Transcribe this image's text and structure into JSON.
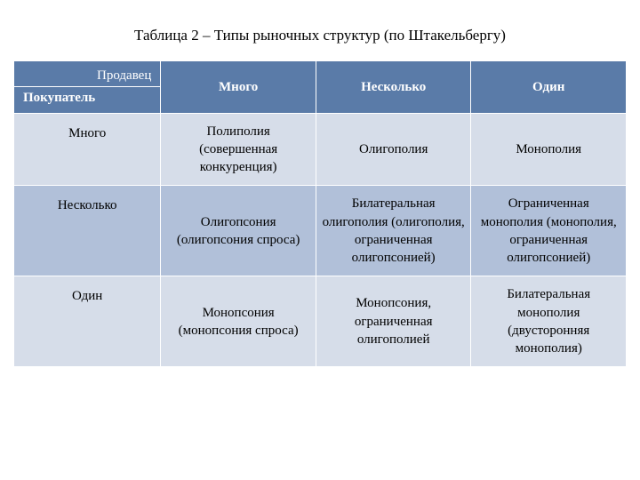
{
  "caption": "Таблица 2 – Типы рыночных структур (по Штакельбергу)",
  "table": {
    "corner": {
      "seller": "Продавец",
      "buyer": "Покупатель"
    },
    "columns": [
      "Много",
      "Несколько",
      "Один"
    ],
    "rows": [
      {
        "label": "Много",
        "cells": [
          "Полиполия (совершенная конкуренция)",
          "Олигополия",
          "Монополия"
        ]
      },
      {
        "label": "Несколько",
        "cells": [
          "Олигопсония (олигопсония спроса)",
          "Билатеральная олигополия (олигополия, ограниченная олигопсонией)",
          "Ограниченная монополия (монополия, ограниченная олигопсонией)"
        ]
      },
      {
        "label": "Один",
        "cells": [
          "Монопсония (монопсония спроса)",
          "Монопсония, ограниченная олигополией",
          "Билатеральная монополия (двусторонняя монополия)"
        ]
      }
    ],
    "style": {
      "header_bg": "#5a7ba8",
      "header_fg": "#ffffff",
      "band_light": "#d6dde9",
      "band_dark": "#b1c0d9",
      "border_color": "#ffffff",
      "font_family": "Georgia",
      "caption_fontsize": 17,
      "cell_fontsize": 15
    }
  }
}
